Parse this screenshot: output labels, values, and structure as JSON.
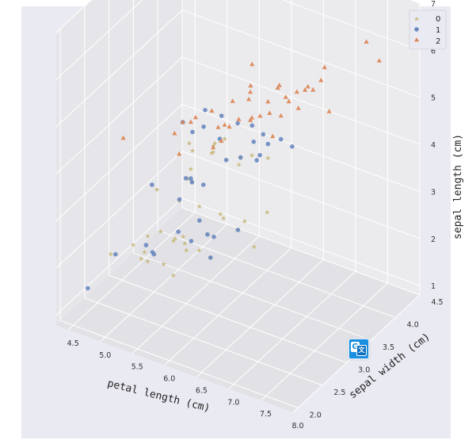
{
  "chart_data": {
    "type": "scatter",
    "projection": "3d",
    "xlabel": "petal length (cm)",
    "ylabel": "sepal width (cm)",
    "zlabel": "sepal length (cm)",
    "x_ticks": [
      "4.5",
      "5.0",
      "5.5",
      "6.0",
      "6.5",
      "7.0",
      "7.5",
      "8.0"
    ],
    "y_ticks": [
      "2.0",
      "2.5",
      "3.0",
      "3.5",
      "4.0",
      "4.5"
    ],
    "z_ticks": [
      "1",
      "2",
      "3",
      "4",
      "5",
      "6",
      "7"
    ],
    "xlim": [
      4.3,
      8.0
    ],
    "ylim": [
      1.9,
      4.5
    ],
    "zlim": [
      0.8,
      7.0
    ],
    "legend_position": "top-right",
    "series": [
      {
        "name": "0",
        "marker": "star",
        "color": "#c9b97c",
        "points": [
          [
            4.4,
            2.9,
            1.4
          ],
          [
            4.6,
            3.1,
            1.5
          ],
          [
            4.8,
            3.0,
            1.4
          ],
          [
            4.9,
            3.0,
            1.4
          ],
          [
            5.0,
            3.4,
            1.5
          ],
          [
            5.1,
            3.5,
            1.4
          ],
          [
            5.2,
            3.4,
            1.4
          ],
          [
            5.3,
            3.7,
            1.5
          ],
          [
            5.4,
            3.9,
            1.7
          ],
          [
            5.4,
            3.4,
            1.5
          ],
          [
            5.5,
            4.2,
            1.4
          ],
          [
            5.5,
            3.5,
            1.3
          ],
          [
            5.7,
            4.4,
            1.5
          ],
          [
            5.7,
            3.8,
            1.7
          ],
          [
            5.8,
            4.0,
            1.2
          ],
          [
            5.0,
            3.2,
            1.2
          ],
          [
            5.1,
            3.8,
            1.9
          ],
          [
            4.8,
            3.4,
            1.6
          ],
          [
            5.1,
            3.3,
            1.7
          ],
          [
            5.2,
            4.1,
            1.5
          ],
          [
            4.7,
            3.2,
            1.3
          ],
          [
            5.0,
            3.6,
            1.4
          ],
          [
            4.6,
            3.4,
            1.4
          ],
          [
            5.3,
            3.0,
            1.3
          ],
          [
            5.6,
            3.0,
            4.1
          ],
          [
            5.8,
            2.7,
            4.1
          ],
          [
            6.0,
            2.9,
            4.5
          ],
          [
            6.3,
            2.5,
            4.9
          ],
          [
            6.1,
            2.8,
            4.7
          ],
          [
            6.4,
            2.9,
            4.3
          ],
          [
            5.9,
            3.0,
            4.2
          ],
          [
            6.6,
            2.9,
            4.6
          ],
          [
            6.2,
            2.2,
            4.5
          ],
          [
            5.7,
            2.8,
            4.5
          ],
          [
            6.5,
            2.8,
            4.6
          ],
          [
            6.0,
            2.2,
            4.0
          ],
          [
            5.5,
            2.4,
            3.8
          ],
          [
            5.6,
            2.9,
            3.6
          ],
          [
            6.7,
            3.1,
            4.4
          ],
          [
            6.1,
            3.0,
            4.6
          ]
        ]
      },
      {
        "name": "1",
        "marker": "circle",
        "color": "#6a88bf",
        "points": [
          [
            4.4,
            3.0,
            1.3
          ],
          [
            4.5,
            2.3,
            1.3
          ],
          [
            4.8,
            3.1,
            1.6
          ],
          [
            5.0,
            3.5,
            1.6
          ],
          [
            5.1,
            3.8,
            1.6
          ],
          [
            5.2,
            3.5,
            1.5
          ],
          [
            5.4,
            3.7,
            1.5
          ],
          [
            5.5,
            3.5,
            1.3
          ],
          [
            5.7,
            3.8,
            1.7
          ],
          [
            5.0,
            3.0,
            1.6
          ],
          [
            4.9,
            3.1,
            1.5
          ],
          [
            5.3,
            3.7,
            1.5
          ],
          [
            5.6,
            2.8,
            4.9
          ],
          [
            5.8,
            2.6,
            4.0
          ],
          [
            6.0,
            3.4,
            4.5
          ],
          [
            6.1,
            2.9,
            4.7
          ],
          [
            6.2,
            2.9,
            4.3
          ],
          [
            6.3,
            3.3,
            4.7
          ],
          [
            6.4,
            3.2,
            4.5
          ],
          [
            6.5,
            2.8,
            4.6
          ],
          [
            6.6,
            3.0,
            4.4
          ],
          [
            6.7,
            3.1,
            4.7
          ],
          [
            6.8,
            2.8,
            4.8
          ],
          [
            7.0,
            3.2,
            4.7
          ],
          [
            6.9,
            3.1,
            4.9
          ],
          [
            5.5,
            2.3,
            4.0
          ],
          [
            5.7,
            2.6,
            3.5
          ],
          [
            6.0,
            2.7,
            5.1
          ],
          [
            5.9,
            3.2,
            4.8
          ],
          [
            6.3,
            2.3,
            4.4
          ],
          [
            6.1,
            2.6,
            5.6
          ],
          [
            6.7,
            3.0,
            5.0
          ],
          [
            5.6,
            3.0,
            4.5
          ],
          [
            6.2,
            2.2,
            4.5
          ],
          [
            5.8,
            2.7,
            3.9
          ]
        ]
      },
      {
        "name": "2",
        "marker": "triangle",
        "color": "#dd8452",
        "points": [
          [
            4.9,
            2.5,
            4.5
          ],
          [
            5.6,
            2.8,
            4.9
          ],
          [
            5.7,
            2.5,
            5.0
          ],
          [
            5.8,
            2.8,
            5.1
          ],
          [
            6.0,
            2.2,
            5.0
          ],
          [
            6.1,
            3.0,
            4.9
          ],
          [
            6.2,
            2.8,
            4.8
          ],
          [
            6.3,
            3.3,
            6.0
          ],
          [
            6.3,
            2.9,
            5.6
          ],
          [
            6.4,
            2.7,
            5.3
          ],
          [
            6.5,
            3.0,
            5.8
          ],
          [
            6.5,
            3.2,
            5.1
          ],
          [
            6.7,
            2.5,
            5.8
          ],
          [
            6.7,
            3.3,
            5.7
          ],
          [
            6.8,
            3.0,
            5.5
          ],
          [
            6.9,
            3.1,
            5.4
          ],
          [
            7.1,
            3.0,
            5.9
          ],
          [
            7.2,
            3.2,
            6.0
          ],
          [
            7.2,
            3.6,
            6.1
          ],
          [
            7.3,
            2.9,
            6.3
          ],
          [
            7.4,
            2.8,
            6.1
          ],
          [
            7.6,
            3.0,
            6.6
          ],
          [
            7.7,
            2.6,
            6.9
          ],
          [
            7.7,
            3.8,
            6.7
          ],
          [
            7.9,
            3.8,
            6.4
          ],
          [
            6.4,
            3.1,
            5.5
          ],
          [
            6.0,
            3.0,
            4.8
          ],
          [
            6.9,
            3.2,
            5.7
          ],
          [
            6.7,
            3.1,
            5.6
          ],
          [
            6.3,
            2.5,
            5.0
          ],
          [
            6.5,
            3.0,
            5.2
          ],
          [
            7.0,
            2.8,
            5.3
          ],
          [
            6.8,
            3.2,
            5.9
          ],
          [
            5.9,
            3.0,
            5.1
          ],
          [
            6.2,
            3.4,
            5.4
          ],
          [
            7.4,
            3.1,
            6.2
          ],
          [
            5.8,
            2.7,
            5.1
          ],
          [
            6.6,
            2.9,
            5.4
          ],
          [
            7.5,
            3.3,
            5.6
          ]
        ]
      }
    ]
  },
  "colors": {
    "page": "#ffffff",
    "axes_bg": "#eaeaf2",
    "pane_floor": "#e2e2e6",
    "pane_back": "#e6e6ea",
    "pane_side": "#ebebee",
    "grid": "#ffffff"
  }
}
